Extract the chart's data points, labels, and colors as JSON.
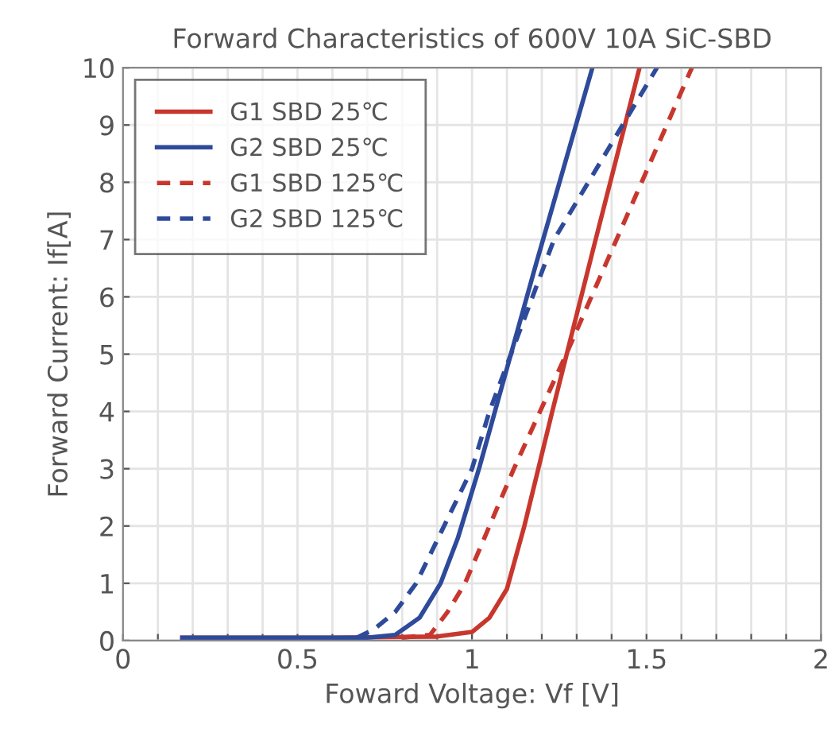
{
  "chart_data": {
    "type": "line",
    "title": "Forward Characteristics of 600V 10A SiC-SBD",
    "xlabel": "Foward Voltage: Vf [V]",
    "ylabel": "Forward Current: If[A]",
    "series": [
      {
        "name": "G1 SBD 25℃",
        "color": "#c8372d",
        "line_style": "solid",
        "x": [
          0.17,
          0.6,
          0.9,
          1.0,
          1.05,
          1.1,
          1.15,
          1.23,
          1.35,
          1.48
        ],
        "values": [
          0.05,
          0.05,
          0.07,
          0.15,
          0.4,
          0.9,
          2.0,
          4,
          6.9,
          10
        ]
      },
      {
        "name": "G2 SBD 25℃",
        "color": "#2e4a9a",
        "line_style": "solid",
        "x": [
          0.17,
          0.7,
          0.78,
          0.85,
          0.91,
          0.96,
          1.02,
          1.18,
          1.345
        ],
        "values": [
          0.05,
          0.05,
          0.1,
          0.4,
          1.0,
          1.8,
          3,
          6.5,
          10
        ]
      },
      {
        "name": "G1 SBD 125℃",
        "color": "#c8372d",
        "line_style": "dashed",
        "x": [
          0.8,
          0.88,
          0.93,
          0.98,
          1.05,
          1.12,
          1.27,
          1.45,
          1.63
        ],
        "values": [
          0.05,
          0.1,
          0.5,
          1.0,
          2.0,
          3,
          5,
          7.5,
          10
        ]
      },
      {
        "name": "G2 SBD 125℃",
        "color": "#2e4a9a",
        "line_style": "dashed",
        "x": [
          0.67,
          0.72,
          0.78,
          0.84,
          0.92,
          1.0,
          1.05,
          1.235,
          1.53
        ],
        "values": [
          0.05,
          0.2,
          0.5,
          1.0,
          2.0,
          3,
          4,
          7,
          10
        ]
      }
    ],
    "xlim": [
      0,
      2
    ],
    "ylim": [
      0,
      10
    ],
    "xticks": [
      0,
      {
        "value": 0.1,
        "label": null
      },
      {
        "value": 0.2,
        "label": null
      },
      {
        "value": 0.3,
        "label": null
      },
      {
        "value": 0.4,
        "label": null
      },
      0.5,
      {
        "value": 0.6,
        "label": null
      },
      {
        "value": 0.7,
        "label": null
      },
      {
        "value": 0.8,
        "label": null
      },
      {
        "value": 0.9,
        "label": null
      },
      1,
      {
        "value": 1.1,
        "label": null
      },
      {
        "value": 1.2,
        "label": null
      },
      {
        "value": 1.3,
        "label": null
      },
      {
        "value": 1.4,
        "label": null
      },
      1.5,
      {
        "value": 1.6,
        "label": null
      },
      {
        "value": 1.7,
        "label": null
      },
      {
        "value": 1.8,
        "label": null
      },
      {
        "value": 1.9,
        "label": null
      },
      2
    ],
    "yticks": [
      0,
      1,
      2,
      3,
      4,
      5,
      6,
      7,
      8,
      9,
      10
    ],
    "grid": true,
    "legend": "top left",
    "marker": "none"
  }
}
